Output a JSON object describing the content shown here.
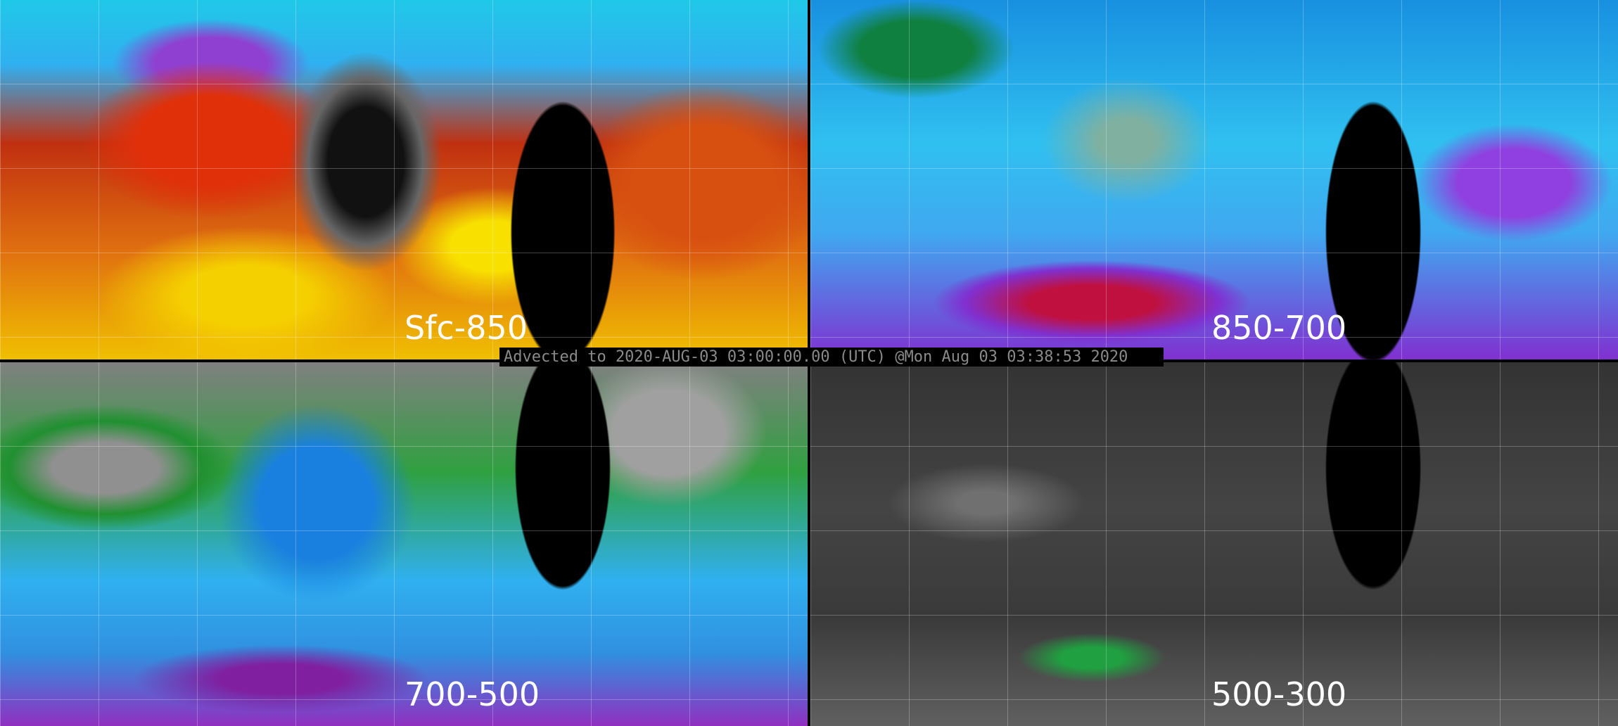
{
  "panels": [
    {
      "label": "Sfc-850"
    },
    {
      "label": "850-700"
    },
    {
      "label": "700-500"
    },
    {
      "label": "500-300"
    }
  ],
  "caption": "Advected to 2020-AUG-03 03:00:00.00 (UTC) @Mon Aug 03 03:38:53 2020"
}
